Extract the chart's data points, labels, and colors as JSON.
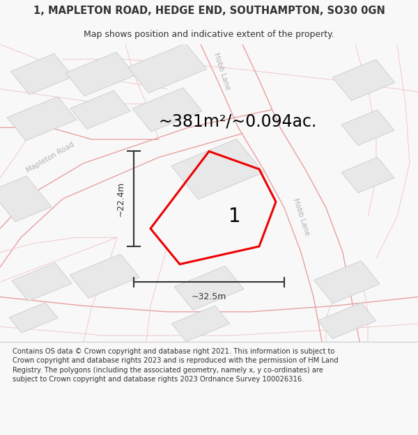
{
  "title_line1": "1, MAPLETON ROAD, HEDGE END, SOUTHAMPTON, SO30 0GN",
  "title_line2": "Map shows position and indicative extent of the property.",
  "area_text": "~381m²/~0.094ac.",
  "label_number": "1",
  "dim_width": "~32.5m",
  "dim_height": "~22.4m",
  "footer_text": "Contains OS data © Crown copyright and database right 2021. This information is subject to Crown copyright and database rights 2023 and is reproduced with the permission of HM Land Registry. The polygons (including the associated geometry, namely x, y co-ordinates) are subject to Crown copyright and database rights 2023 Ordnance Survey 100026316.",
  "bg_color": "#f8f8f8",
  "map_bg": "#ffffff",
  "road_line_color": "#e8a0a0",
  "road_line_color2": "#f0c0c0",
  "building_fill": "#e8e8e8",
  "building_edge": "#d0d0d0",
  "plot_fill": "none",
  "plot_edge": "#ee0000",
  "plot_edge_width": 2.2,
  "dim_color": "#333333",
  "text_color": "#333333",
  "road_label_color": "#b0b0b0",
  "title_fontsize": 10.5,
  "subtitle_fontsize": 9.0,
  "area_fontsize": 17,
  "label_fontsize": 20,
  "footer_fontsize": 7.2,
  "map_road_lw": 1.0,
  "map_road_lw2": 0.6
}
